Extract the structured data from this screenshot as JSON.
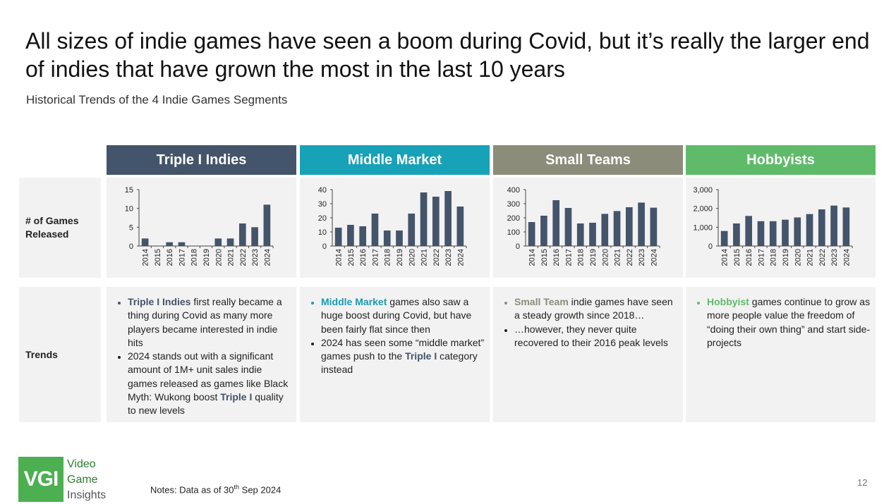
{
  "title": "All sizes of indie games have seen a boom during Covid, but it’s really the larger end of indies that have grown the most in the last 10 years",
  "subtitle": "Historical Trends of the 4 Indie Games Segments",
  "row_labels": {
    "games_released": "# of Games Released",
    "trends": "Trends"
  },
  "segments": [
    {
      "name": "Triple I Indies",
      "color": "#44546a",
      "label_color": "#44546a"
    },
    {
      "name": "Middle Market",
      "color": "#17a2b8",
      "label_color": "#1a9bb3"
    },
    {
      "name": "Small Teams",
      "color": "#8c8c7a",
      "label_color": "#8c8c7a"
    },
    {
      "name": "Hobbyists",
      "color": "#5fbb6a",
      "label_color": "#5fbb6a"
    }
  ],
  "trends": [
    [
      {
        "pre": "",
        "hl": "Triple I Indies",
        "post": " first really became a thing during Covid as many more players became interested in indie hits"
      },
      {
        "pre": "2024 stands out with a significant amount of 1M+ unit sales indie games released as games like Black Myth: Wukong boost ",
        "hl": "Triple I",
        "post": " quality to new levels"
      }
    ],
    [
      {
        "pre": "",
        "hl": "Middle Market",
        "post": " games also saw a huge boost during Covid, but have been fairly flat since then"
      },
      {
        "pre": "2024 has seen some “middle market” games push to the ",
        "hl": "Triple I",
        "hl_seg": 0,
        "post": " category instead"
      }
    ],
    [
      {
        "pre": "",
        "hl": "Small Team",
        "post": " indie games have seen a steady growth since 2018…"
      },
      {
        "pre": "…however, they never quite recovered to their 2016 peak levels",
        "hl": "",
        "post": ""
      }
    ],
    [
      {
        "pre": "",
        "hl": "Hobbyist",
        "post": " games continue to grow as more people value the freedom of “doing their own thing” and start side-projects"
      }
    ]
  ],
  "chart_data": [
    {
      "type": "bar",
      "title": "Triple I Indies",
      "categories": [
        "2014",
        "2015",
        "2016",
        "2017",
        "2018",
        "2019",
        "2020",
        "2021",
        "2022",
        "2023",
        "2024"
      ],
      "values": [
        2,
        0,
        1,
        1,
        0,
        0,
        2,
        2,
        6,
        5,
        11
      ],
      "ylim": [
        0,
        15
      ],
      "yticks": [
        0,
        5,
        10,
        15
      ],
      "ytick_labels": [
        "0",
        "5",
        "10",
        "15"
      ],
      "bar_color": "#44546a"
    },
    {
      "type": "bar",
      "title": "Middle Market",
      "categories": [
        "2014",
        "2015",
        "2016",
        "2017",
        "2018",
        "2019",
        "2020",
        "2021",
        "2022",
        "2023",
        "2024"
      ],
      "values": [
        13,
        15,
        14,
        23,
        11,
        11,
        23,
        38,
        35,
        39,
        28
      ],
      "ylim": [
        0,
        40
      ],
      "yticks": [
        0,
        10,
        20,
        30,
        40
      ],
      "ytick_labels": [
        "0",
        "10",
        "20",
        "30",
        "40"
      ],
      "bar_color": "#44546a"
    },
    {
      "type": "bar",
      "title": "Small Teams",
      "categories": [
        "2014",
        "2015",
        "2016",
        "2017",
        "2018",
        "2019",
        "2020",
        "2021",
        "2022",
        "2023",
        "2024"
      ],
      "values": [
        170,
        215,
        325,
        270,
        160,
        165,
        228,
        248,
        275,
        308,
        272
      ],
      "ylim": [
        0,
        400
      ],
      "yticks": [
        0,
        100,
        200,
        300,
        400
      ],
      "ytick_labels": [
        "0",
        "100",
        "200",
        "300",
        "400"
      ],
      "bar_color": "#44546a"
    },
    {
      "type": "bar",
      "title": "Hobbyists",
      "categories": [
        "2014",
        "2015",
        "2016",
        "2017",
        "2018",
        "2019",
        "2020",
        "2021",
        "2022",
        "2023",
        "2024"
      ],
      "values": [
        800,
        1200,
        1600,
        1320,
        1320,
        1400,
        1520,
        1700,
        1950,
        2150,
        2050
      ],
      "ylim": [
        0,
        3000
      ],
      "yticks": [
        0,
        1000,
        2000,
        3000
      ],
      "ytick_labels": [
        "0",
        "1,000",
        "2,000",
        "3,000"
      ],
      "bar_color": "#44546a"
    }
  ],
  "logo": {
    "mark": "VGI",
    "words": [
      "Video",
      "Game",
      "Insights"
    ]
  },
  "notes": {
    "text": "Notes: Data as of 30",
    "sup": "th",
    "rest": " Sep 2024"
  },
  "page_number": "12"
}
